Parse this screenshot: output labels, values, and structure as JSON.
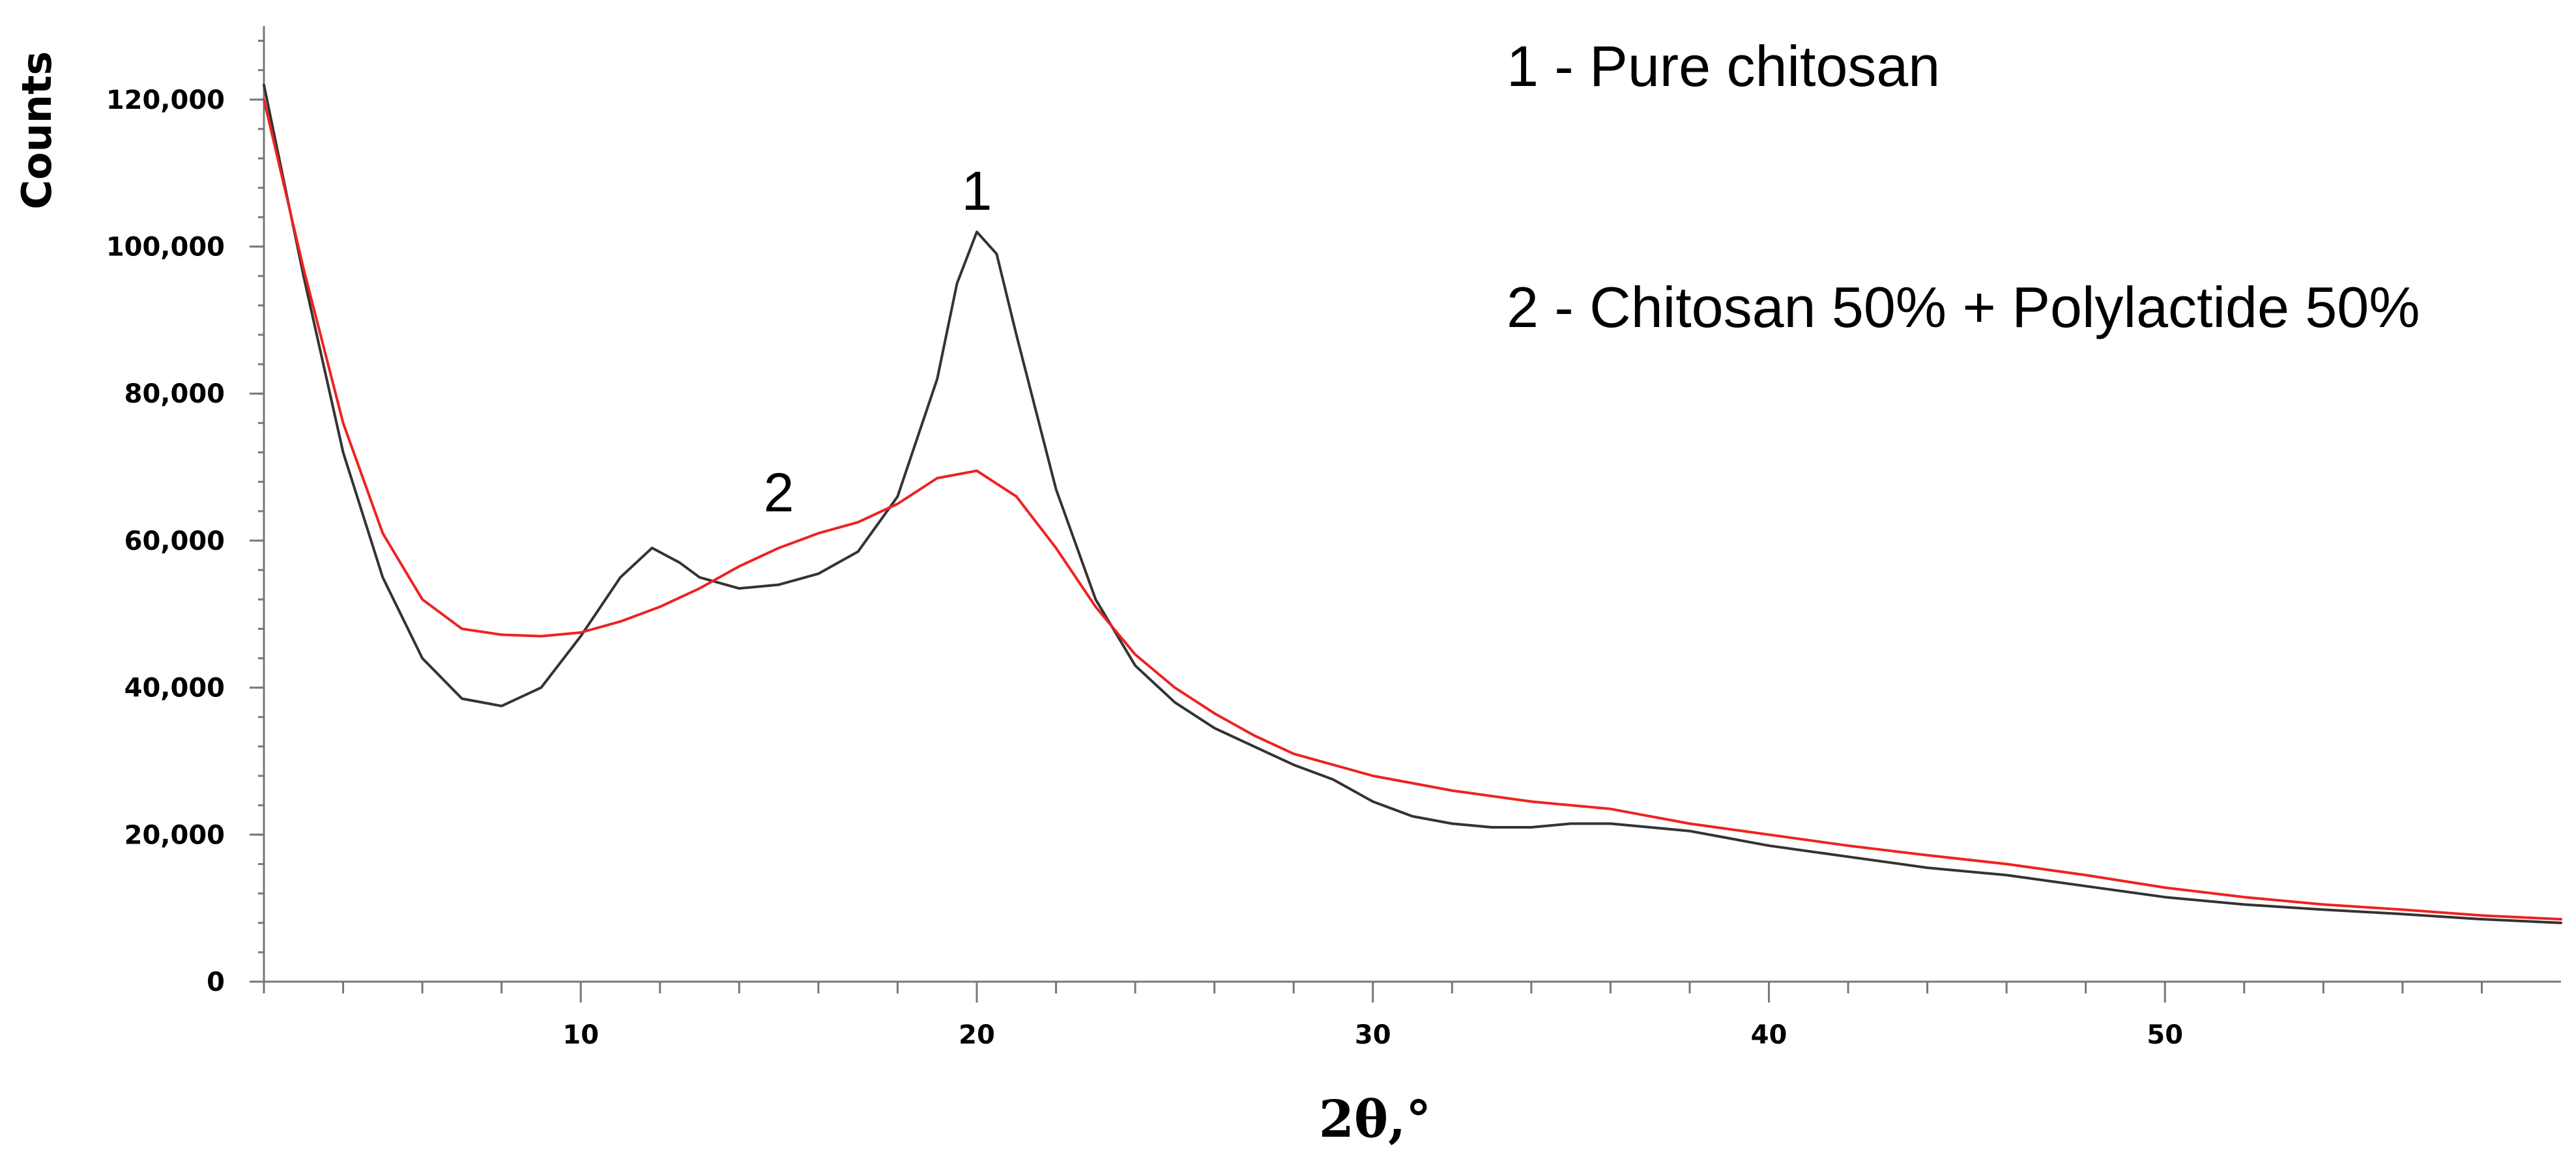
{
  "chart_data": {
    "type": "line",
    "title": "",
    "xlabel": "2θ,°",
    "ylabel": "Counts",
    "xlim": [
      2,
      60
    ],
    "ylim": [
      0,
      130000
    ],
    "x_ticks": [
      10,
      20,
      30,
      40,
      50
    ],
    "x_tick_labels": [
      "10",
      "20",
      "30",
      "40",
      "50"
    ],
    "y_ticks": [
      0,
      20000,
      40000,
      60000,
      80000,
      100000,
      120000
    ],
    "y_tick_labels": [
      "0",
      "20,000",
      "40,000",
      "60,000",
      "80,000",
      "100,000",
      "120,000"
    ],
    "grid": false,
    "legend": [
      "1 - Pure chitosan",
      "2 - Chitosan 50% + Polylactide 50%"
    ],
    "annotations": [
      {
        "text": "1",
        "x": 20,
        "y": 105000
      },
      {
        "text": "2",
        "x": 15,
        "y": 64000
      }
    ],
    "series": [
      {
        "name": "1 - Pure chitosan",
        "color": "#333333",
        "points": [
          [
            2,
            122000
          ],
          [
            3,
            96000
          ],
          [
            4,
            72000
          ],
          [
            5,
            55000
          ],
          [
            6,
            44000
          ],
          [
            7,
            38500
          ],
          [
            8,
            37500
          ],
          [
            9,
            40000
          ],
          [
            10,
            47000
          ],
          [
            11,
            55000
          ],
          [
            11.8,
            59000
          ],
          [
            12.5,
            57000
          ],
          [
            13,
            55000
          ],
          [
            14,
            53500
          ],
          [
            15,
            54000
          ],
          [
            16,
            55500
          ],
          [
            17,
            58500
          ],
          [
            18,
            66000
          ],
          [
            19,
            82000
          ],
          [
            19.5,
            95000
          ],
          [
            20,
            102000
          ],
          [
            20.5,
            99000
          ],
          [
            21,
            88000
          ],
          [
            22,
            67000
          ],
          [
            23,
            52000
          ],
          [
            24,
            43000
          ],
          [
            25,
            38000
          ],
          [
            26,
            34500
          ],
          [
            27,
            32000
          ],
          [
            28,
            29500
          ],
          [
            29,
            27500
          ],
          [
            30,
            24500
          ],
          [
            31,
            22500
          ],
          [
            32,
            21500
          ],
          [
            33,
            21000
          ],
          [
            34,
            21000
          ],
          [
            35,
            21500
          ],
          [
            36,
            21500
          ],
          [
            37,
            21000
          ],
          [
            38,
            20500
          ],
          [
            40,
            18500
          ],
          [
            42,
            17000
          ],
          [
            44,
            15500
          ],
          [
            46,
            14500
          ],
          [
            48,
            13000
          ],
          [
            50,
            11500
          ],
          [
            52,
            10500
          ],
          [
            54,
            9800
          ],
          [
            56,
            9200
          ],
          [
            58,
            8500
          ],
          [
            60,
            8000
          ]
        ]
      },
      {
        "name": "2 - Chitosan 50% + Polylactide 50%",
        "color": "#ee2222",
        "points": [
          [
            2,
            120000
          ],
          [
            3,
            97000
          ],
          [
            4,
            76000
          ],
          [
            5,
            61000
          ],
          [
            6,
            52000
          ],
          [
            7,
            48000
          ],
          [
            8,
            47200
          ],
          [
            9,
            47000
          ],
          [
            10,
            47500
          ],
          [
            11,
            49000
          ],
          [
            12,
            51000
          ],
          [
            13,
            53500
          ],
          [
            14,
            56500
          ],
          [
            15,
            59000
          ],
          [
            16,
            61000
          ],
          [
            17,
            62500
          ],
          [
            18,
            65000
          ],
          [
            19,
            68500
          ],
          [
            20,
            69500
          ],
          [
            21,
            66000
          ],
          [
            22,
            59000
          ],
          [
            23,
            51000
          ],
          [
            24,
            44500
          ],
          [
            25,
            40000
          ],
          [
            26,
            36500
          ],
          [
            27,
            33500
          ],
          [
            28,
            31000
          ],
          [
            30,
            28000
          ],
          [
            32,
            26000
          ],
          [
            34,
            24500
          ],
          [
            36,
            23500
          ],
          [
            38,
            21500
          ],
          [
            40,
            20000
          ],
          [
            42,
            18500
          ],
          [
            44,
            17200
          ],
          [
            46,
            16000
          ],
          [
            48,
            14500
          ],
          [
            50,
            12800
          ],
          [
            52,
            11500
          ],
          [
            54,
            10500
          ],
          [
            56,
            9800
          ],
          [
            58,
            9000
          ],
          [
            60,
            8500
          ]
        ]
      }
    ]
  }
}
